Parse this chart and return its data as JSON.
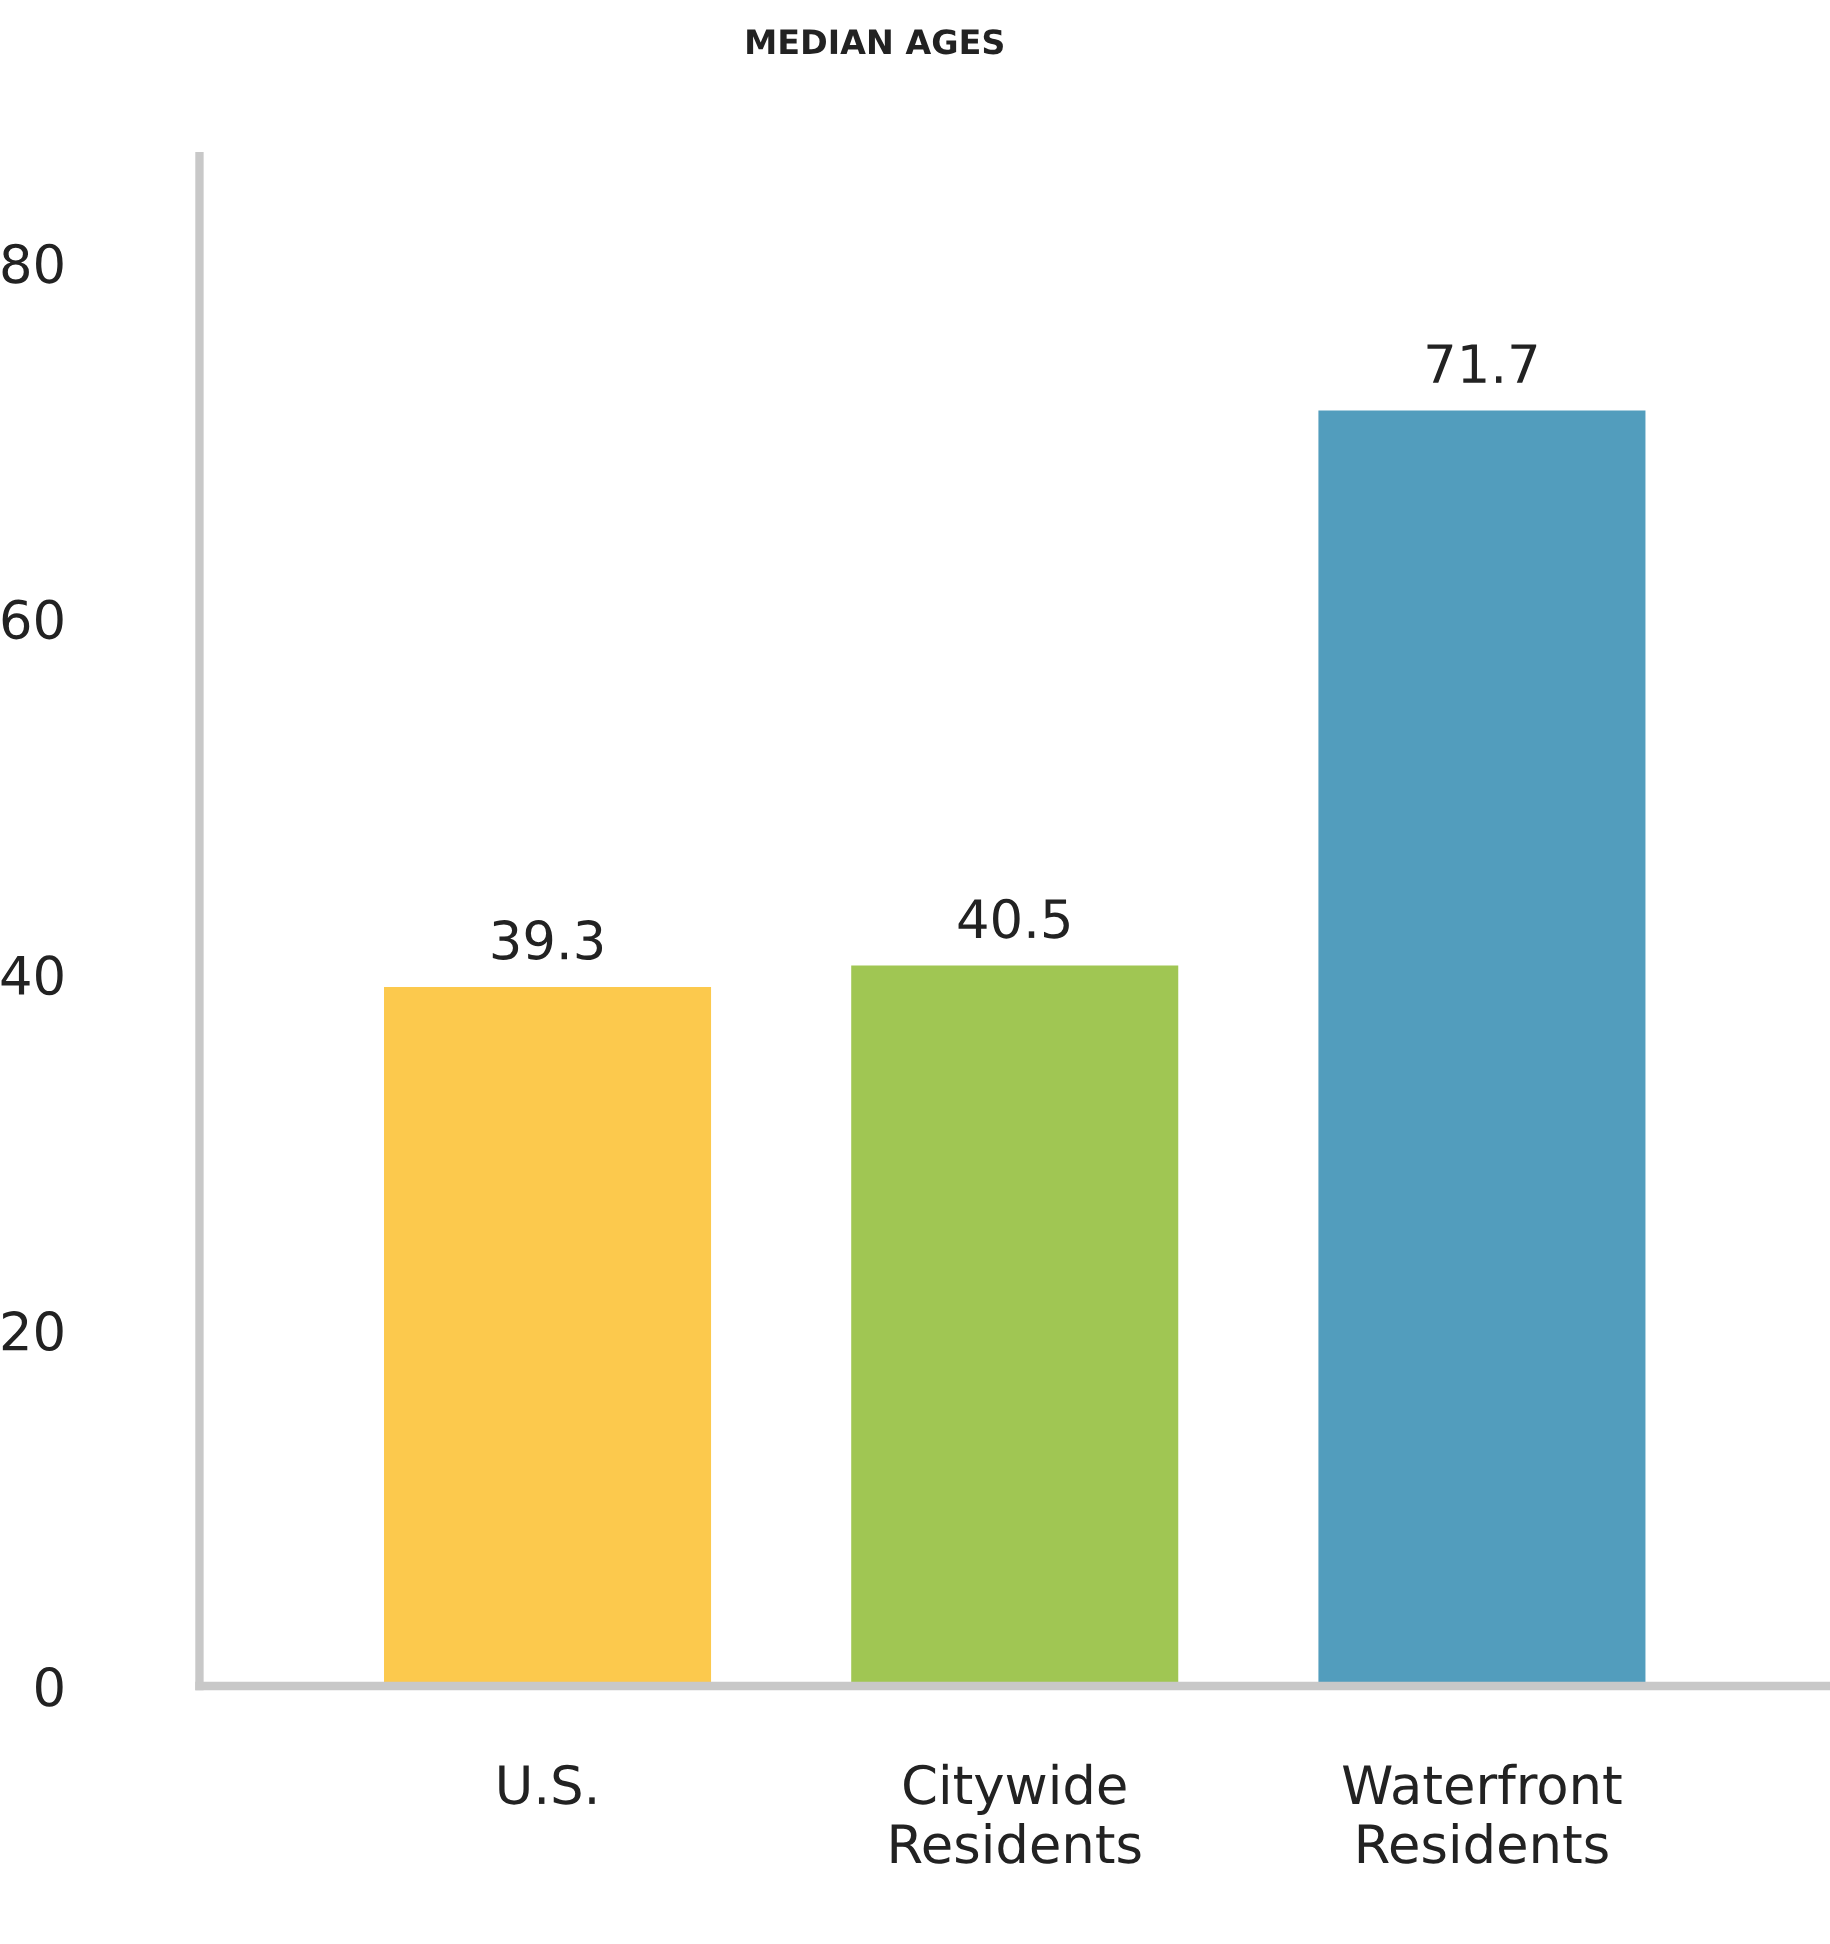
{
  "chart_data": {
    "type": "bar",
    "title": "MEDIAN AGES",
    "categories": [
      "U.S.",
      "Citywide\nResidents",
      "Waterfront\nResidents"
    ],
    "values": [
      39.3,
      40.5,
      71.7
    ],
    "colors": [
      "#fcc94d",
      "#a0c653",
      "#529dbd"
    ],
    "ylim": [
      0,
      86
    ],
    "yticks": [
      0,
      20,
      40,
      60,
      80
    ],
    "data_labels": true,
    "grid": false
  }
}
